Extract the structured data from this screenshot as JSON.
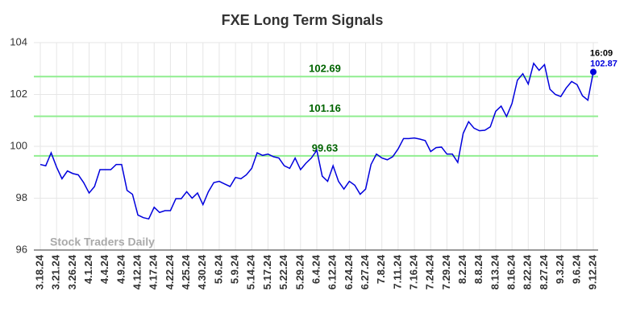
{
  "chart_data": {
    "type": "line",
    "title": "FXE Long Term Signals",
    "categories": [
      "3.18.24",
      null,
      null,
      "3.21.24",
      null,
      null,
      "3.26.24",
      null,
      null,
      "4.1.24",
      null,
      null,
      "4.4.24",
      null,
      null,
      "4.9.24",
      null,
      null,
      "4.12.24",
      null,
      null,
      "4.17.24",
      null,
      null,
      "4.22.24",
      null,
      null,
      "4.25.24",
      null,
      null,
      "4.30.24",
      null,
      null,
      "5.6.24",
      null,
      null,
      "5.9.24",
      null,
      null,
      "5.14.24",
      null,
      null,
      "5.17.24",
      null,
      null,
      "5.22.24",
      null,
      null,
      "5.29.24",
      null,
      null,
      "6.4.24",
      null,
      null,
      "6.12.24",
      null,
      null,
      "6.24.24",
      null,
      null,
      "6.27.24",
      null,
      null,
      "7.8.24",
      null,
      null,
      "7.11.24",
      null,
      null,
      "7.16.24",
      null,
      null,
      "7.24.24",
      null,
      null,
      "7.29.24",
      null,
      null,
      "8.2.24",
      null,
      null,
      "8.8.24",
      null,
      null,
      "8.13.24",
      null,
      null,
      "8.16.24",
      null,
      null,
      "8.22.24",
      null,
      null,
      "8.27.24",
      null,
      null,
      "9.3.24",
      null,
      null,
      "9.6.24",
      null,
      null,
      "9.12.24"
    ],
    "series": [
      {
        "name": "FXE",
        "color": "#0000dd",
        "values": [
          99.3,
          99.25,
          99.75,
          99.2,
          98.75,
          99.05,
          98.95,
          98.9,
          98.6,
          98.2,
          98.45,
          99.1,
          99.1,
          99.1,
          99.3,
          99.3,
          98.3,
          98.15,
          97.35,
          97.25,
          97.2,
          97.65,
          97.45,
          97.52,
          97.52,
          97.98,
          97.98,
          98.25,
          98.0,
          98.2,
          97.75,
          98.25,
          98.6,
          98.65,
          98.55,
          98.45,
          98.8,
          98.75,
          98.9,
          99.15,
          99.75,
          99.65,
          99.7,
          99.6,
          99.55,
          99.25,
          99.15,
          99.55,
          99.1,
          99.35,
          99.55,
          99.85,
          98.85,
          98.65,
          99.25,
          98.65,
          98.35,
          98.65,
          98.5,
          98.15,
          98.35,
          99.3,
          99.7,
          99.55,
          99.48,
          99.6,
          99.9,
          100.3,
          100.3,
          100.32,
          100.28,
          100.22,
          99.8,
          99.95,
          99.97,
          99.7,
          99.7,
          99.38,
          100.5,
          100.95,
          100.7,
          100.6,
          100.62,
          100.75,
          101.35,
          101.55,
          101.15,
          101.65,
          102.55,
          102.8,
          102.4,
          103.2,
          102.93,
          103.15,
          102.2,
          102.0,
          101.92,
          102.25,
          102.5,
          102.38,
          101.95,
          101.78,
          102.87
        ]
      }
    ],
    "levels": [
      102.69,
      101.16,
      99.63
    ],
    "level_color": "#90ee90",
    "level_label_color": "#006400",
    "last_time_label": "16:09",
    "watermark": "Stock Traders Daily",
    "ylim": [
      96,
      104
    ],
    "yticks": [
      96,
      98,
      100,
      102,
      104
    ],
    "grid": true
  }
}
